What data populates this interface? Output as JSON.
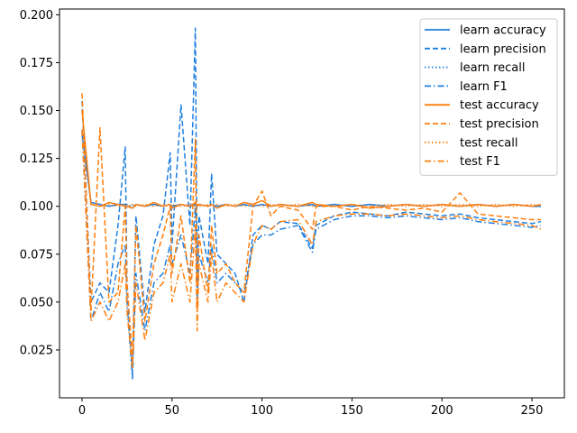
{
  "chart_data": {
    "type": "line",
    "title": "",
    "xlabel": "",
    "ylabel": "",
    "xlim": [
      -12.5,
      268
    ],
    "ylim": [
      0.0,
      0.203
    ],
    "xticks": [
      0,
      50,
      100,
      150,
      200,
      250
    ],
    "yticks": [
      0.025,
      0.05,
      0.075,
      0.1,
      0.125,
      0.15,
      0.175,
      0.2
    ],
    "xtick_labels": [
      "0",
      "50",
      "100",
      "150",
      "200",
      "250"
    ],
    "ytick_labels": [
      "0.025",
      "0.050",
      "0.075",
      "0.100",
      "0.125",
      "0.150",
      "0.175",
      "0.200"
    ],
    "grid": false,
    "legend_position": "top-right",
    "x": [
      0,
      5,
      10,
      15,
      20,
      24,
      25,
      28,
      30,
      35,
      40,
      45,
      49,
      50,
      55,
      60,
      63,
      64,
      65,
      70,
      72,
      75,
      80,
      85,
      90,
      95,
      100,
      105,
      110,
      120,
      128,
      130,
      140,
      150,
      160,
      170,
      180,
      190,
      200,
      210,
      220,
      230,
      240,
      250,
      255
    ],
    "series": [
      {
        "name": "learn accuracy",
        "color": "#1f7fe0",
        "dash": "solid",
        "values": [
          0.138,
          0.102,
          0.101,
          0.1,
          0.101,
          0.101,
          0.1,
          0.099,
          0.101,
          0.1,
          0.101,
          0.1,
          0.101,
          0.1,
          0.101,
          0.1,
          0.101,
          0.1,
          0.101,
          0.1,
          0.101,
          0.1,
          0.101,
          0.1,
          0.101,
          0.1,
          0.101,
          0.1,
          0.101,
          0.1,
          0.101,
          0.1,
          0.101,
          0.1,
          0.101,
          0.1,
          0.101,
          0.1,
          0.101,
          0.1,
          0.101,
          0.1,
          0.101,
          0.1,
          0.1
        ]
      },
      {
        "name": "learn precision",
        "color": "#1f7fe0",
        "dash": "dashed",
        "values": [
          0.155,
          0.05,
          0.06,
          0.055,
          0.09,
          0.131,
          0.06,
          0.012,
          0.095,
          0.045,
          0.08,
          0.095,
          0.128,
          0.08,
          0.153,
          0.09,
          0.193,
          0.06,
          0.095,
          0.07,
          0.117,
          0.075,
          0.07,
          0.065,
          0.05,
          0.085,
          0.09,
          0.088,
          0.092,
          0.091,
          0.078,
          0.09,
          0.095,
          0.097,
          0.096,
          0.095,
          0.097,
          0.096,
          0.095,
          0.096,
          0.094,
          0.093,
          0.092,
          0.091,
          0.092
        ]
      },
      {
        "name": "learn recall",
        "color": "#1f7fe0",
        "dash": "dotted",
        "values": [
          0.137,
          0.102,
          0.101,
          0.1,
          0.101,
          0.1,
          0.101,
          0.1,
          0.101,
          0.1,
          0.101,
          0.1,
          0.101,
          0.1,
          0.101,
          0.1,
          0.101,
          0.1,
          0.101,
          0.1,
          0.101,
          0.1,
          0.101,
          0.1,
          0.101,
          0.1,
          0.101,
          0.1,
          0.101,
          0.1,
          0.101,
          0.1,
          0.101,
          0.1,
          0.101,
          0.1,
          0.101,
          0.1,
          0.101,
          0.1,
          0.101,
          0.1,
          0.101,
          0.1,
          0.1
        ]
      },
      {
        "name": "learn F1",
        "color": "#1f7fe0",
        "dash": "dashdot",
        "values": [
          0.14,
          0.04,
          0.055,
          0.045,
          0.07,
          0.08,
          0.05,
          0.01,
          0.065,
          0.035,
          0.06,
          0.065,
          0.08,
          0.07,
          0.085,
          0.065,
          0.1,
          0.05,
          0.075,
          0.06,
          0.08,
          0.06,
          0.065,
          0.06,
          0.055,
          0.08,
          0.085,
          0.085,
          0.088,
          0.09,
          0.076,
          0.088,
          0.093,
          0.095,
          0.095,
          0.094,
          0.095,
          0.094,
          0.093,
          0.094,
          0.092,
          0.091,
          0.09,
          0.089,
          0.09
        ]
      },
      {
        "name": "test accuracy",
        "color": "#ff7f0e",
        "dash": "solid",
        "values": [
          0.15,
          0.101,
          0.1,
          0.102,
          0.101,
          0.1,
          0.1,
          0.099,
          0.101,
          0.1,
          0.102,
          0.1,
          0.101,
          0.099,
          0.101,
          0.1,
          0.102,
          0.1,
          0.101,
          0.1,
          0.101,
          0.099,
          0.101,
          0.1,
          0.102,
          0.101,
          0.103,
          0.1,
          0.101,
          0.1,
          0.102,
          0.101,
          0.1,
          0.101,
          0.099,
          0.1,
          0.101,
          0.1,
          0.101,
          0.1,
          0.101,
          0.1,
          0.101,
          0.1,
          0.101
        ]
      },
      {
        "name": "test precision",
        "color": "#ff7f0e",
        "dash": "dashed",
        "values": [
          0.159,
          0.045,
          0.141,
          0.05,
          0.055,
          0.1,
          0.06,
          0.02,
          0.09,
          0.04,
          0.07,
          0.085,
          0.1,
          0.065,
          0.095,
          0.06,
          0.135,
          0.045,
          0.085,
          0.055,
          0.09,
          0.065,
          0.07,
          0.06,
          0.055,
          0.1,
          0.108,
          0.095,
          0.1,
          0.098,
          0.088,
          0.1,
          0.1,
          0.098,
          0.1,
          0.099,
          0.098,
          0.099,
          0.097,
          0.107,
          0.096,
          0.095,
          0.094,
          0.093,
          0.093
        ]
      },
      {
        "name": "test recall",
        "color": "#ff7f0e",
        "dash": "dotted",
        "values": [
          0.15,
          0.101,
          0.1,
          0.101,
          0.1,
          0.101,
          0.1,
          0.101,
          0.1,
          0.101,
          0.1,
          0.101,
          0.1,
          0.101,
          0.1,
          0.101,
          0.1,
          0.101,
          0.1,
          0.101,
          0.1,
          0.101,
          0.1,
          0.101,
          0.1,
          0.101,
          0.1,
          0.101,
          0.1,
          0.101,
          0.1,
          0.101,
          0.1,
          0.101,
          0.1,
          0.101,
          0.1,
          0.101,
          0.1,
          0.101,
          0.1,
          0.101,
          0.1,
          0.101,
          0.1
        ]
      },
      {
        "name": "test F1",
        "color": "#ff7f0e",
        "dash": "dashdot",
        "values": [
          0.14,
          0.04,
          0.05,
          0.04,
          0.05,
          0.07,
          0.045,
          0.015,
          0.06,
          0.03,
          0.055,
          0.06,
          0.075,
          0.05,
          0.07,
          0.05,
          0.09,
          0.035,
          0.07,
          0.05,
          0.075,
          0.05,
          0.06,
          0.055,
          0.05,
          0.08,
          0.09,
          0.088,
          0.092,
          0.093,
          0.08,
          0.092,
          0.095,
          0.096,
          0.096,
          0.095,
          0.096,
          0.095,
          0.094,
          0.095,
          0.093,
          0.092,
          0.091,
          0.09,
          0.088
        ]
      }
    ]
  }
}
